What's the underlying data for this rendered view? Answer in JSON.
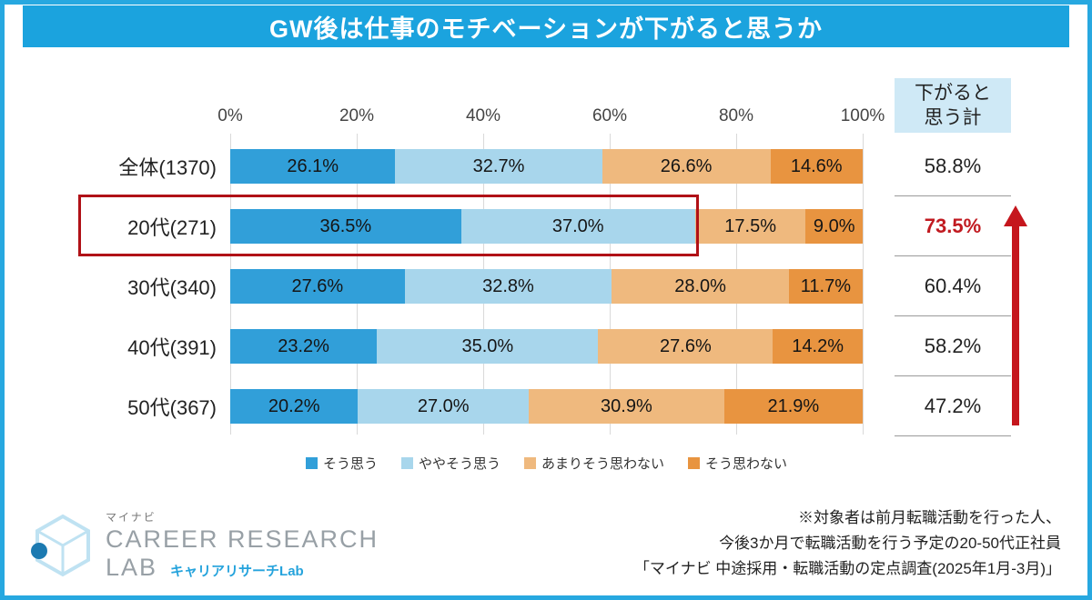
{
  "title": "GW後は仕事のモチベーションが下がると思うか",
  "colors": {
    "frame_border": "#27a8e0",
    "title_bg": "#1ba3de",
    "summary_header_bg": "#cfe9f6",
    "highlight_red": "#b01117",
    "summary_highlight_text": "#c11a20"
  },
  "chart_data": {
    "type": "bar",
    "stacked": true,
    "orientation": "horizontal",
    "title": "GW後は仕事のモチベーションが下がると思うか",
    "xlim": [
      0,
      100
    ],
    "x_ticks": [
      "0%",
      "20%",
      "40%",
      "60%",
      "80%",
      "100%"
    ],
    "grid": true,
    "legend_position": "bottom",
    "categories": [
      "全体(1370)",
      "20代(271)",
      "30代(340)",
      "40代(391)",
      "50代(367)"
    ],
    "series": [
      {
        "name": "そう思う",
        "color": "#319fd9",
        "values": [
          26.1,
          36.5,
          27.6,
          23.2,
          20.2
        ]
      },
      {
        "name": "ややそう思う",
        "color": "#a8d6ec",
        "values": [
          32.7,
          37.0,
          32.8,
          35.0,
          27.0
        ]
      },
      {
        "name": "あまりそう思わない",
        "color": "#efb97e",
        "values": [
          26.6,
          17.5,
          28.0,
          27.6,
          30.9
        ]
      },
      {
        "name": "そう思わない",
        "color": "#e89440",
        "values": [
          14.6,
          9.0,
          11.7,
          14.2,
          21.9
        ]
      }
    ],
    "summary_column": {
      "header": "下がると思う計",
      "header_lines": [
        "下がると",
        "思う計"
      ],
      "values": [
        "58.8%",
        "73.5%",
        "60.4%",
        "58.2%",
        "47.2%"
      ],
      "highlight_index": 1
    },
    "annotations": {
      "highlight_box_category": "20代(271)",
      "arrow_direction": "up",
      "arrow_color": "#c5161d"
    }
  },
  "footer": {
    "logo": {
      "brand": "マイナビ",
      "line1": "CAREER RESEARCH",
      "line2": "LAB",
      "sub": "キャリアリサーチLab"
    },
    "notes": [
      "※対象者は前月転職活動を行った人、",
      "今後3か月で転職活動を行う予定の20-50代正社員",
      "「マイナビ 中途採用・転職活動の定点調査(2025年1月-3月)」"
    ]
  }
}
